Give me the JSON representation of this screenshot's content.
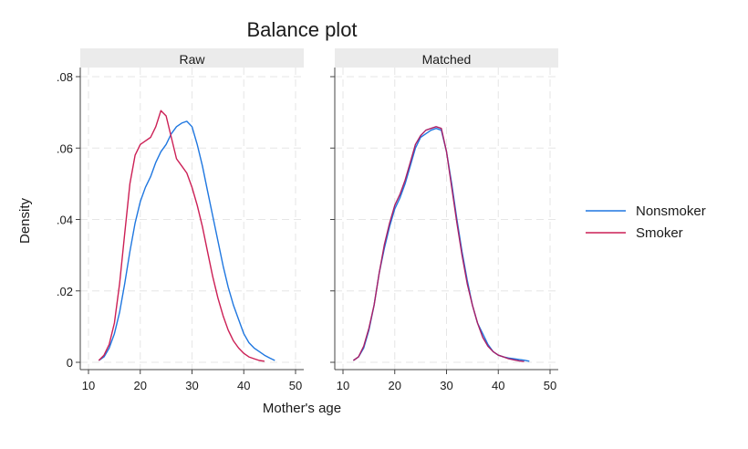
{
  "chart_data": {
    "type": "line",
    "title": "Balance plot",
    "xlabel": "Mother's age",
    "ylabel": "Density",
    "xlim": [
      10,
      50
    ],
    "ylim": [
      0,
      0.08
    ],
    "xticks": [
      10,
      20,
      30,
      40,
      50
    ],
    "xtick_labels": [
      "10",
      "20",
      "30",
      "40",
      "50"
    ],
    "yticks": [
      0,
      0.02,
      0.04,
      0.06,
      0.08
    ],
    "ytick_labels": [
      "0",
      ".02",
      ".04",
      ".06",
      ".08"
    ],
    "grid": true,
    "legend_position": "right",
    "panels": [
      {
        "title": "Raw",
        "series": [
          {
            "name": "Nonsmoker",
            "color": "#1f77e0",
            "x": [
              12,
              13,
              14,
              15,
              16,
              17,
              18,
              19,
              20,
              21,
              22,
              23,
              24,
              25,
              26,
              27,
              28,
              29,
              30,
              31,
              32,
              33,
              34,
              35,
              36,
              37,
              38,
              39,
              40,
              41,
              42,
              43,
              44,
              45,
              46
            ],
            "y": [
              0.0005,
              0.0015,
              0.004,
              0.008,
              0.014,
              0.022,
              0.031,
              0.039,
              0.045,
              0.049,
              0.052,
              0.056,
              0.059,
              0.061,
              0.064,
              0.066,
              0.067,
              0.0675,
              0.066,
              0.061,
              0.055,
              0.048,
              0.041,
              0.034,
              0.027,
              0.021,
              0.016,
              0.012,
              0.008,
              0.0055,
              0.004,
              0.003,
              0.002,
              0.0012,
              0.0005
            ]
          },
          {
            "name": "Smoker",
            "color": "#cc1f55",
            "x": [
              12,
              13,
              14,
              15,
              16,
              17,
              18,
              19,
              20,
              21,
              22,
              23,
              24,
              25,
              26,
              27,
              28,
              29,
              30,
              31,
              32,
              33,
              34,
              35,
              36,
              37,
              38,
              39,
              40,
              41,
              42,
              43,
              44
            ],
            "y": [
              0.0005,
              0.002,
              0.005,
              0.011,
              0.022,
              0.036,
              0.05,
              0.058,
              0.061,
              0.062,
              0.063,
              0.066,
              0.0705,
              0.069,
              0.063,
              0.057,
              0.055,
              0.053,
              0.049,
              0.044,
              0.038,
              0.031,
              0.024,
              0.018,
              0.013,
              0.009,
              0.006,
              0.004,
              0.0025,
              0.0015,
              0.001,
              0.0005,
              0.0003
            ]
          }
        ]
      },
      {
        "title": "Matched",
        "series": [
          {
            "name": "Nonsmoker",
            "color": "#1f77e0",
            "x": [
              12,
              13,
              14,
              15,
              16,
              17,
              18,
              19,
              20,
              21,
              22,
              23,
              24,
              25,
              26,
              27,
              28,
              29,
              30,
              31,
              32,
              33,
              34,
              35,
              36,
              37,
              38,
              39,
              40,
              41,
              42,
              43,
              44,
              45,
              46
            ],
            "y": [
              0.0005,
              0.0015,
              0.004,
              0.009,
              0.016,
              0.025,
              0.032,
              0.038,
              0.043,
              0.046,
              0.05,
              0.055,
              0.06,
              0.063,
              0.064,
              0.065,
              0.0655,
              0.065,
              0.059,
              0.05,
              0.04,
              0.031,
              0.023,
              0.016,
              0.011,
              0.008,
              0.005,
              0.003,
              0.002,
              0.0015,
              0.0012,
              0.001,
              0.0008,
              0.0006,
              0.0003
            ]
          },
          {
            "name": "Smoker",
            "color": "#aa1f66",
            "x": [
              12,
              13,
              14,
              15,
              16,
              17,
              18,
              19,
              20,
              21,
              22,
              23,
              24,
              25,
              26,
              27,
              28,
              29,
              30,
              31,
              32,
              33,
              34,
              35,
              36,
              37,
              38,
              39,
              40,
              41,
              42,
              43,
              44,
              45
            ],
            "y": [
              0.0005,
              0.0015,
              0.0045,
              0.0095,
              0.016,
              0.025,
              0.033,
              0.039,
              0.044,
              0.047,
              0.051,
              0.056,
              0.061,
              0.0635,
              0.065,
              0.0655,
              0.066,
              0.0655,
              0.059,
              0.049,
              0.039,
              0.03,
              0.022,
              0.016,
              0.011,
              0.007,
              0.0045,
              0.003,
              0.002,
              0.0015,
              0.001,
              0.0007,
              0.0004,
              0.0002
            ]
          }
        ]
      }
    ],
    "legend": [
      {
        "label": "Nonsmoker",
        "color": "#1f77e0"
      },
      {
        "label": "Smoker",
        "color": "#cc1f55"
      }
    ]
  }
}
